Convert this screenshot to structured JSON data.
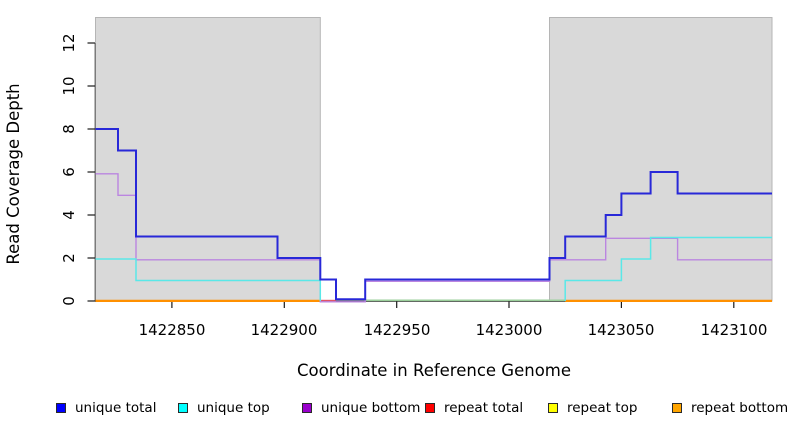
{
  "chart_data": {
    "type": "line",
    "subtype": "step-coverage",
    "title": "",
    "xlabel": "Coordinate in Reference Genome",
    "ylabel": "Read Coverage Depth",
    "xlim": [
      1422816,
      1423117
    ],
    "ylim": [
      0,
      13.2
    ],
    "x_ticks": [
      1422850,
      1422900,
      1422950,
      1423000,
      1423050,
      1423100
    ],
    "y_ticks": [
      0,
      2,
      4,
      6,
      8,
      10,
      12
    ],
    "grid": "off",
    "legend_position": "bottom",
    "shade_color": "#d9d9d9",
    "shaded_regions": [
      {
        "x0": 1422816,
        "x1": 1422916
      },
      {
        "x0": 1423018,
        "x1": 1423117
      }
    ],
    "series": [
      {
        "name": "unique total",
        "legend_color": "#0000ff",
        "line_color": "#2828d8",
        "steps": [
          [
            1422816,
            1422826,
            8
          ],
          [
            1422826,
            1422834,
            7
          ],
          [
            1422834,
            1422897,
            3
          ],
          [
            1422897,
            1422916,
            2
          ],
          [
            1422916,
            1422923,
            1
          ],
          [
            1422923,
            1422936,
            0
          ],
          [
            1422936,
            1423018,
            1
          ],
          [
            1423018,
            1423025,
            2
          ],
          [
            1423025,
            1423043,
            3
          ],
          [
            1423043,
            1423050,
            4
          ],
          [
            1423050,
            1423063,
            5
          ],
          [
            1423063,
            1423075,
            6
          ],
          [
            1423075,
            1423117,
            5
          ]
        ]
      },
      {
        "name": "unique top",
        "legend_color": "#00ffff",
        "line_color": "#5ae8e8",
        "steps": [
          [
            1422816,
            1422834,
            2
          ],
          [
            1422834,
            1422916,
            1
          ],
          [
            1422916,
            1423025,
            0
          ],
          [
            1423025,
            1423050,
            1
          ],
          [
            1423050,
            1423063,
            2
          ],
          [
            1423063,
            1423117,
            3
          ]
        ]
      },
      {
        "name": "unique bottom",
        "legend_color": "#9900cc",
        "line_color": "#bb86e0",
        "steps": [
          [
            1422816,
            1422826,
            6
          ],
          [
            1422826,
            1422834,
            5
          ],
          [
            1422834,
            1422916,
            2
          ],
          [
            1422916,
            1422936,
            0
          ],
          [
            1422936,
            1423018,
            1
          ],
          [
            1423018,
            1423043,
            2
          ],
          [
            1423043,
            1423075,
            3
          ],
          [
            1423075,
            1423117,
            2
          ]
        ]
      },
      {
        "name": "repeat total",
        "legend_color": "#ff0000",
        "line_color": "#e05566",
        "steps": [
          [
            1422816,
            1423117,
            0
          ]
        ],
        "visible_zero_segments": [
          [
            1422916,
            1422923
          ]
        ]
      },
      {
        "name": "repeat top",
        "legend_color": "#ffff00",
        "line_color": "#9bcf9b",
        "steps": [
          [
            1422816,
            1423117,
            0
          ]
        ],
        "visible_zero_segments": [
          [
            1422936,
            1423025
          ]
        ]
      },
      {
        "name": "repeat bottom",
        "legend_color": "#ffa500",
        "line_color": "#ff9000",
        "steps": [
          [
            1422816,
            1423117,
            0
          ]
        ],
        "visible_zero_segments": [
          [
            1422816,
            1422916
          ],
          [
            1423025,
            1423117
          ]
        ]
      }
    ]
  }
}
